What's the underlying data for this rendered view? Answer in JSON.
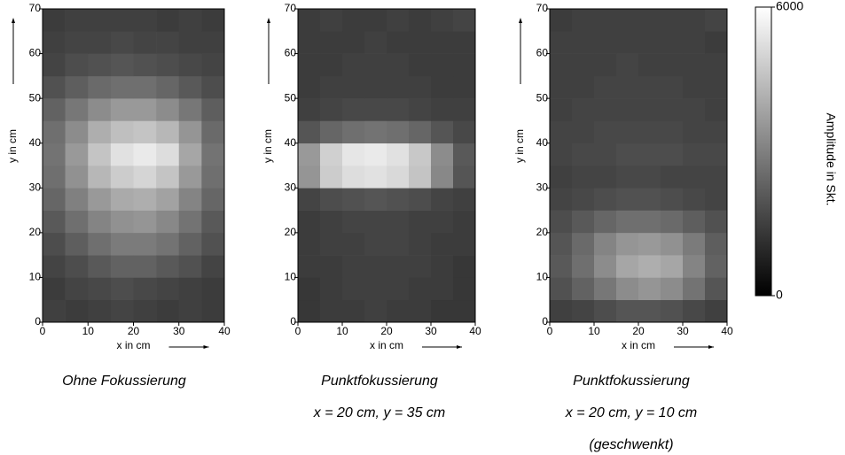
{
  "chart_data": [
    {
      "type": "heatmap",
      "xlabel": "x in cm",
      "ylabel": "y in cm",
      "xlim": [
        0,
        40
      ],
      "ylim": [
        0,
        70
      ],
      "xticks": [
        0,
        10,
        20,
        30,
        40
      ],
      "yticks": [
        0,
        10,
        20,
        30,
        40,
        50,
        60,
        70
      ],
      "xbins": [
        0,
        5,
        10,
        15,
        20,
        25,
        30,
        35,
        40
      ],
      "ybins": [
        0,
        5,
        10,
        15,
        20,
        25,
        30,
        35,
        40,
        45,
        50,
        55,
        60,
        65,
        70
      ],
      "caption": [
        "Ohne Fokussierung"
      ],
      "values": [
        [
          1500,
          1400,
          1500,
          1600,
          1500,
          1400,
          1500,
          1400
        ],
        [
          1400,
          1600,
          1700,
          1800,
          1700,
          1600,
          1500,
          1400
        ],
        [
          1600,
          1800,
          2100,
          2300,
          2300,
          2100,
          1900,
          1600
        ],
        [
          1800,
          2200,
          2600,
          2900,
          2900,
          2700,
          2300,
          1900
        ],
        [
          2100,
          2600,
          3100,
          3400,
          3500,
          3200,
          2700,
          2100
        ],
        [
          2400,
          3000,
          3600,
          4000,
          4100,
          3800,
          3100,
          2400
        ],
        [
          2600,
          3400,
          4300,
          4800,
          5000,
          4600,
          3600,
          2600
        ],
        [
          2700,
          3600,
          4600,
          5300,
          5500,
          5200,
          3900,
          2700
        ],
        [
          2600,
          3300,
          4100,
          4500,
          4600,
          4300,
          3500,
          2500
        ],
        [
          2300,
          2800,
          3300,
          3600,
          3600,
          3300,
          2800,
          2200
        ],
        [
          1900,
          2200,
          2500,
          2600,
          2600,
          2400,
          2100,
          1800
        ],
        [
          1600,
          1800,
          1900,
          2000,
          1900,
          1800,
          1700,
          1600
        ],
        [
          1500,
          1600,
          1600,
          1700,
          1600,
          1600,
          1500,
          1500
        ],
        [
          1400,
          1500,
          1500,
          1500,
          1500,
          1400,
          1500,
          1400
        ]
      ]
    },
    {
      "type": "heatmap",
      "xlabel": "x in cm",
      "ylabel": "y in cm",
      "xlim": [
        0,
        40
      ],
      "ylim": [
        0,
        70
      ],
      "xticks": [
        0,
        10,
        20,
        30,
        40
      ],
      "yticks": [
        0,
        10,
        20,
        30,
        40,
        50,
        60,
        70
      ],
      "xbins": [
        0,
        5,
        10,
        15,
        20,
        25,
        30,
        35,
        40
      ],
      "ybins": [
        0,
        5,
        10,
        15,
        20,
        25,
        30,
        35,
        40,
        45,
        50,
        55,
        60,
        65,
        70
      ],
      "caption": [
        "Punktfokussierung",
        "x = 20 cm, y = 35 cm"
      ],
      "values": [
        [
          1300,
          1400,
          1400,
          1500,
          1400,
          1400,
          1300,
          1300
        ],
        [
          1300,
          1400,
          1500,
          1500,
          1500,
          1400,
          1400,
          1300
        ],
        [
          1400,
          1400,
          1500,
          1500,
          1500,
          1500,
          1400,
          1300
        ],
        [
          1400,
          1500,
          1500,
          1600,
          1600,
          1500,
          1400,
          1400
        ],
        [
          1400,
          1500,
          1600,
          1600,
          1600,
          1500,
          1500,
          1400
        ],
        [
          1600,
          1800,
          1900,
          2000,
          1900,
          1800,
          1600,
          1500
        ],
        [
          3500,
          4800,
          5200,
          5300,
          5100,
          4600,
          3200,
          2000
        ],
        [
          3600,
          4900,
          5400,
          5500,
          5300,
          4700,
          3300,
          2100
        ],
        [
          2000,
          2400,
          2600,
          2700,
          2600,
          2400,
          2000,
          1700
        ],
        [
          1500,
          1600,
          1700,
          1700,
          1700,
          1600,
          1500,
          1500
        ],
        [
          1400,
          1500,
          1500,
          1500,
          1500,
          1500,
          1400,
          1400
        ],
        [
          1400,
          1400,
          1500,
          1500,
          1500,
          1400,
          1400,
          1400
        ],
        [
          1400,
          1400,
          1400,
          1500,
          1400,
          1400,
          1400,
          1400
        ],
        [
          1400,
          1500,
          1400,
          1400,
          1500,
          1400,
          1500,
          1600
        ]
      ]
    },
    {
      "type": "heatmap",
      "xlabel": "x in cm",
      "ylabel": "y in cm",
      "xlim": [
        0,
        40
      ],
      "ylim": [
        0,
        70
      ],
      "xticks": [
        0,
        10,
        20,
        30,
        40
      ],
      "yticks": [
        0,
        10,
        20,
        30,
        40,
        50,
        60,
        70
      ],
      "xbins": [
        0,
        5,
        10,
        15,
        20,
        25,
        30,
        35,
        40
      ],
      "ybins": [
        0,
        5,
        10,
        15,
        20,
        25,
        30,
        35,
        40,
        45,
        50,
        55,
        60,
        65,
        70
      ],
      "caption": [
        "Punktfokussierung",
        "x = 20 cm, y = 10 cm",
        "(geschwenkt)"
      ],
      "values": [
        [
          1500,
          1600,
          1800,
          2000,
          2000,
          1900,
          1700,
          1500
        ],
        [
          1900,
          2300,
          2800,
          3300,
          3500,
          3300,
          2700,
          2000
        ],
        [
          2100,
          2600,
          3300,
          3900,
          4100,
          3900,
          3100,
          2300
        ],
        [
          2000,
          2500,
          3100,
          3500,
          3600,
          3400,
          2900,
          2200
        ],
        [
          1800,
          2100,
          2400,
          2600,
          2600,
          2500,
          2200,
          1900
        ],
        [
          1600,
          1700,
          1800,
          1900,
          1900,
          1800,
          1700,
          1600
        ],
        [
          1500,
          1600,
          1600,
          1700,
          1700,
          1600,
          1600,
          1600
        ],
        [
          1600,
          1700,
          1700,
          1800,
          1800,
          1800,
          1700,
          1700
        ],
        [
          1600,
          1600,
          1700,
          1700,
          1700,
          1700,
          1600,
          1600
        ],
        [
          1500,
          1600,
          1600,
          1600,
          1600,
          1600,
          1600,
          1500
        ],
        [
          1500,
          1500,
          1600,
          1600,
          1600,
          1600,
          1500,
          1500
        ],
        [
          1500,
          1500,
          1500,
          1600,
          1500,
          1500,
          1500,
          1500
        ],
        [
          1500,
          1500,
          1500,
          1500,
          1500,
          1500,
          1500,
          1400
        ],
        [
          1400,
          1500,
          1500,
          1500,
          1500,
          1500,
          1500,
          1600
        ]
      ]
    }
  ],
  "colorbar": {
    "label": "Amplitude in Skt.",
    "lim": [
      0,
      6000
    ],
    "ticks": [
      0,
      6000
    ]
  }
}
